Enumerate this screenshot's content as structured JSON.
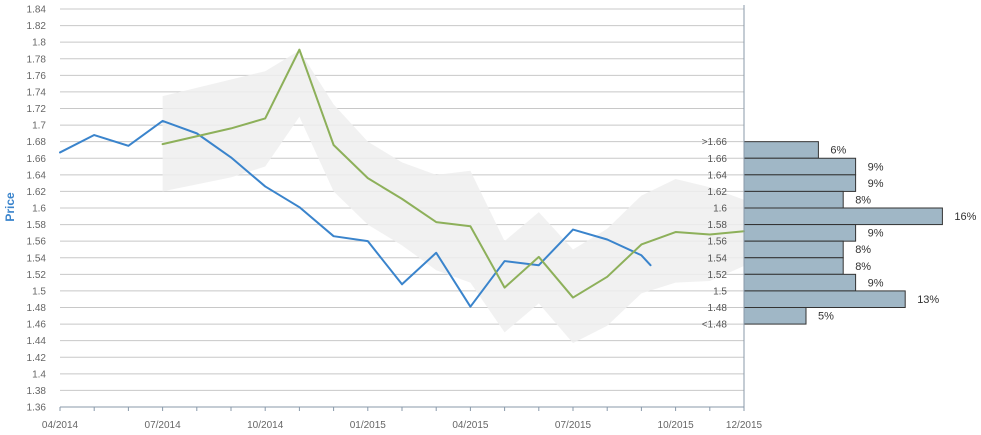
{
  "chart_data": {
    "type": "line",
    "title": "",
    "xlabel": "",
    "ylabel": "Price",
    "ylim": [
      1.36,
      1.84
    ],
    "y_ticks": [
      1.36,
      1.38,
      1.4,
      1.42,
      1.44,
      1.46,
      1.48,
      1.5,
      1.52,
      1.54,
      1.56,
      1.58,
      1.6,
      1.62,
      1.64,
      1.66,
      1.68,
      1.7,
      1.72,
      1.74,
      1.76,
      1.78,
      1.8,
      1.82,
      1.84
    ],
    "y_tick_labels": [
      "1.36",
      "1.38",
      "1.4",
      "1.42",
      "1.44",
      "1.46",
      "1.48",
      "1.5",
      "1.52",
      "1.54",
      "1.56",
      "1.58",
      "1.6",
      "1.62",
      "1.64",
      "1.66",
      "1.68",
      "1.7",
      "1.72",
      "1.74",
      "1.76",
      "1.78",
      "1.8",
      "1.82",
      "1.84"
    ],
    "x_ticks": [
      "2014-04",
      "2014-07",
      "2014-10",
      "2015-01",
      "2015-04",
      "2015-07",
      "2015-10",
      "2015-12"
    ],
    "x_tick_labels": [
      "04/2014",
      "07/2014",
      "10/2014",
      "01/2015",
      "04/2015",
      "07/2015",
      "10/2015",
      "12/2015"
    ],
    "x_range": [
      "2014-04",
      "2015-12"
    ],
    "grid": true,
    "colors": {
      "actual": "#3a84cc",
      "forecast": "#8db05a",
      "band": "#eeeeee",
      "bars": "#a0b7c6",
      "bar_stroke": "#333333",
      "grid": "#c8c8c8",
      "axis": "#8899aa",
      "ylabel": "#3a84cc"
    },
    "series": [
      {
        "key": "actual",
        "points": [
          {
            "x": "2014-04",
            "y": 1.667
          },
          {
            "x": "2014-05",
            "y": 1.688
          },
          {
            "x": "2014-06",
            "y": 1.675
          },
          {
            "x": "2014-07",
            "y": 1.705
          },
          {
            "x": "2014-08",
            "y": 1.69
          },
          {
            "x": "2014-09",
            "y": 1.661
          },
          {
            "x": "2014-10",
            "y": 1.626
          },
          {
            "x": "2014-11",
            "y": 1.601
          },
          {
            "x": "2014-12",
            "y": 1.566
          },
          {
            "x": "2015-01",
            "y": 1.56
          },
          {
            "x": "2015-02",
            "y": 1.508
          },
          {
            "x": "2015-03",
            "y": 1.546
          },
          {
            "x": "2015-04",
            "y": 1.481
          },
          {
            "x": "2015-05",
            "y": 1.536
          },
          {
            "x": "2015-06",
            "y": 1.531
          },
          {
            "x": "2015-07",
            "y": 1.574
          },
          {
            "x": "2015-08",
            "y": 1.562
          },
          {
            "x": "2015-09",
            "y": 1.543
          },
          {
            "x": "2015-09-08",
            "y": 1.531
          }
        ]
      },
      {
        "key": "forecast",
        "points": [
          {
            "x": "2014-07",
            "y": 1.677
          },
          {
            "x": "2014-09",
            "y": 1.696
          },
          {
            "x": "2014-10",
            "y": 1.708
          },
          {
            "x": "2014-11",
            "y": 1.791
          },
          {
            "x": "2014-12",
            "y": 1.676
          },
          {
            "x": "2015-01",
            "y": 1.636
          },
          {
            "x": "2015-02",
            "y": 1.611
          },
          {
            "x": "2015-03",
            "y": 1.583
          },
          {
            "x": "2015-04",
            "y": 1.578
          },
          {
            "x": "2015-05",
            "y": 1.504
          },
          {
            "x": "2015-06",
            "y": 1.541
          },
          {
            "x": "2015-07",
            "y": 1.492
          },
          {
            "x": "2015-08",
            "y": 1.517
          },
          {
            "x": "2015-09",
            "y": 1.556
          },
          {
            "x": "2015-10",
            "y": 1.571
          },
          {
            "x": "2015-11",
            "y": 1.568
          },
          {
            "x": "2015-12",
            "y": 1.572
          }
        ]
      }
    ],
    "band": {
      "upper": [
        {
          "x": "2014-07",
          "y": 1.735
        },
        {
          "x": "2014-09",
          "y": 1.755
        },
        {
          "x": "2014-10",
          "y": 1.765
        },
        {
          "x": "2014-11",
          "y": 1.79
        },
        {
          "x": "2014-12",
          "y": 1.725
        },
        {
          "x": "2015-01",
          "y": 1.68
        },
        {
          "x": "2015-02",
          "y": 1.655
        },
        {
          "x": "2015-03",
          "y": 1.64
        },
        {
          "x": "2015-04",
          "y": 1.645
        },
        {
          "x": "2015-05",
          "y": 1.56
        },
        {
          "x": "2015-06",
          "y": 1.595
        },
        {
          "x": "2015-07",
          "y": 1.55
        },
        {
          "x": "2015-08",
          "y": 1.575
        },
        {
          "x": "2015-09",
          "y": 1.615
        },
        {
          "x": "2015-10",
          "y": 1.635
        },
        {
          "x": "2015-11",
          "y": 1.625
        },
        {
          "x": "2015-12",
          "y": 1.61
        }
      ],
      "lower": [
        {
          "x": "2014-07",
          "y": 1.62
        },
        {
          "x": "2014-09",
          "y": 1.637
        },
        {
          "x": "2014-10",
          "y": 1.65
        },
        {
          "x": "2014-11",
          "y": 1.71
        },
        {
          "x": "2014-12",
          "y": 1.62
        },
        {
          "x": "2015-01",
          "y": 1.58
        },
        {
          "x": "2015-02",
          "y": 1.555
        },
        {
          "x": "2015-03",
          "y": 1.525
        },
        {
          "x": "2015-04",
          "y": 1.51
        },
        {
          "x": "2015-05",
          "y": 1.45
        },
        {
          "x": "2015-06",
          "y": 1.485
        },
        {
          "x": "2015-07",
          "y": 1.437
        },
        {
          "x": "2015-08",
          "y": 1.458
        },
        {
          "x": "2015-09",
          "y": 1.497
        },
        {
          "x": "2015-10",
          "y": 1.51
        },
        {
          "x": "2015-11",
          "y": 1.512
        },
        {
          "x": "2015-12",
          "y": 1.53
        }
      ]
    },
    "distribution": [
      {
        "label": ">1.66",
        "value": 6,
        "text": "6%"
      },
      {
        "label": "1.66",
        "value": 9,
        "text": "9%"
      },
      {
        "label": "1.64",
        "value": 9,
        "text": "9%"
      },
      {
        "label": "1.62",
        "value": 8,
        "text": "8%"
      },
      {
        "label": "1.6",
        "value": 16,
        "text": "16%"
      },
      {
        "label": "1.58",
        "value": 9,
        "text": "9%"
      },
      {
        "label": "1.56",
        "value": 8,
        "text": "8%"
      },
      {
        "label": "1.54",
        "value": 8,
        "text": "8%"
      },
      {
        "label": "1.52",
        "value": 9,
        "text": "9%"
      },
      {
        "label": "1.5",
        "value": 13,
        "text": "13%"
      },
      {
        "label": "1.48",
        "value": 5,
        "text": "5%"
      },
      {
        "label": "<1.48",
        "value": 0,
        "text": ""
      }
    ]
  }
}
